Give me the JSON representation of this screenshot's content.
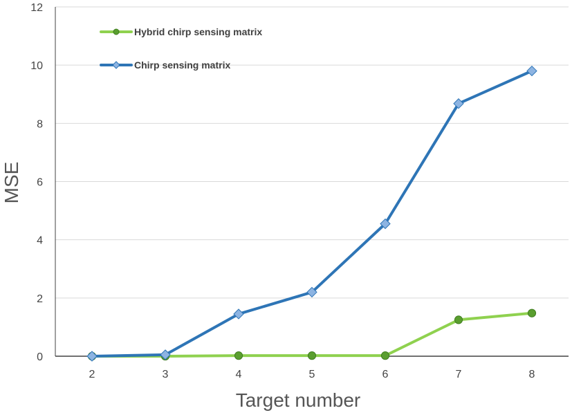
{
  "chart_data": {
    "type": "line",
    "title": "",
    "xlabel": "Target number",
    "ylabel": "MSE",
    "categories": [
      "2",
      "3",
      "4",
      "5",
      "6",
      "7",
      "8"
    ],
    "ylim": [
      0,
      12
    ],
    "yticks": [
      "0",
      "2",
      "4",
      "6",
      "8",
      "10",
      "12"
    ],
    "grid": true,
    "legend_position": "top-left",
    "series": [
      {
        "name": "Hybrid chirp sensing matrix",
        "values": [
          0,
          0,
          0.02,
          0.02,
          0.02,
          1.25,
          1.48
        ],
        "color": "#8fd14f",
        "marker": "circle",
        "marker_color": "#5a9e2f"
      },
      {
        "name": "Chirp sensing matrix",
        "values": [
          0,
          0.05,
          1.45,
          2.2,
          4.55,
          8.68,
          9.8
        ],
        "color": "#2e75b6",
        "marker": "diamond",
        "marker_color": "#8db4e2"
      }
    ]
  }
}
